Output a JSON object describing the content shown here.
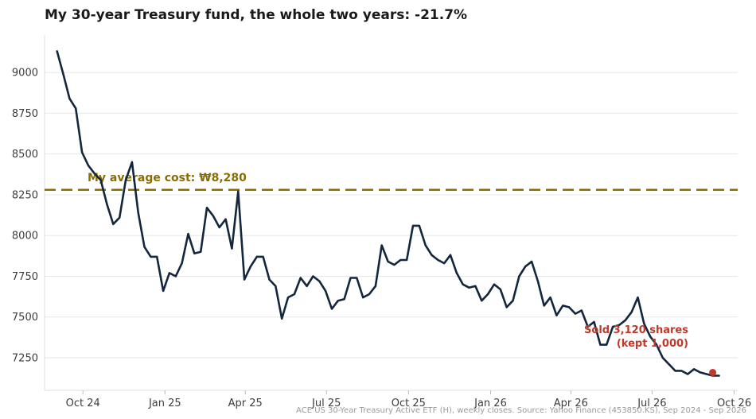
{
  "chart_data": {
    "type": "line",
    "title": "My 30-year Treasury fund, the whole two years: -21.7%",
    "xlabel": "",
    "ylabel": "",
    "xlim": [
      "2024-08-19",
      "2026-10-05"
    ],
    "ylim": [
      7050,
      9230
    ],
    "grid": "horizontal",
    "y_ticks": [
      7250,
      7500,
      7750,
      8000,
      8250,
      8500,
      8750,
      9000
    ],
    "x_ticks": [
      {
        "date": "2024-10-01",
        "label": "Oct 24"
      },
      {
        "date": "2025-01-01",
        "label": "Jan 25"
      },
      {
        "date": "2025-04-01",
        "label": "Apr 25"
      },
      {
        "date": "2025-07-01",
        "label": "Jul 25"
      },
      {
        "date": "2025-10-01",
        "label": "Oct 25"
      },
      {
        "date": "2026-01-01",
        "label": "Jan 26"
      },
      {
        "date": "2026-04-01",
        "label": "Apr 26"
      },
      {
        "date": "2026-07-01",
        "label": "Jul 26"
      },
      {
        "date": "2026-10-01",
        "label": "Oct 26"
      }
    ],
    "series": [
      {
        "color": "#14263d",
        "x": [
          "2024-09-02",
          "2024-09-09",
          "2024-09-16",
          "2024-09-23",
          "2024-09-30",
          "2024-10-07",
          "2024-10-14",
          "2024-10-21",
          "2024-10-28",
          "2024-11-04",
          "2024-11-11",
          "2024-11-18",
          "2024-11-25",
          "2024-12-02",
          "2024-12-09",
          "2024-12-16",
          "2024-12-23",
          "2024-12-30",
          "2025-01-06",
          "2025-01-13",
          "2025-01-20",
          "2025-01-27",
          "2025-02-03",
          "2025-02-10",
          "2025-02-17",
          "2025-02-24",
          "2025-03-03",
          "2025-03-10",
          "2025-03-17",
          "2025-03-24",
          "2025-03-31",
          "2025-04-07",
          "2025-04-14",
          "2025-04-21",
          "2025-04-28",
          "2025-05-05",
          "2025-05-12",
          "2025-05-19",
          "2025-05-26",
          "2025-06-02",
          "2025-06-09",
          "2025-06-16",
          "2025-06-23",
          "2025-06-30",
          "2025-07-07",
          "2025-07-14",
          "2025-07-21",
          "2025-07-28",
          "2025-08-04",
          "2025-08-11",
          "2025-08-18",
          "2025-08-25",
          "2025-09-01",
          "2025-09-08",
          "2025-09-15",
          "2025-09-22",
          "2025-09-29",
          "2025-10-06",
          "2025-10-13",
          "2025-10-20",
          "2025-10-27",
          "2025-11-03",
          "2025-11-10",
          "2025-11-17",
          "2025-11-24",
          "2025-12-01",
          "2025-12-08",
          "2025-12-15",
          "2025-12-22",
          "2025-12-29",
          "2026-01-05",
          "2026-01-12",
          "2026-01-19",
          "2026-01-26",
          "2026-02-02",
          "2026-02-09",
          "2026-02-16",
          "2026-02-23",
          "2026-03-02",
          "2026-03-09",
          "2026-03-16",
          "2026-03-23",
          "2026-03-30",
          "2026-04-06",
          "2026-04-13",
          "2026-04-20",
          "2026-04-27",
          "2026-05-04",
          "2026-05-11",
          "2026-05-18",
          "2026-05-25",
          "2026-06-01",
          "2026-06-08",
          "2026-06-15",
          "2026-06-22",
          "2026-06-29",
          "2026-07-06",
          "2026-07-13",
          "2026-07-20",
          "2026-07-27",
          "2026-08-03",
          "2026-08-10",
          "2026-08-17",
          "2026-08-24",
          "2026-08-31",
          "2026-09-07",
          "2026-09-14"
        ],
        "values": [
          9130,
          8990,
          8840,
          8780,
          8510,
          8430,
          8380,
          8340,
          8190,
          8070,
          8110,
          8340,
          8450,
          8140,
          7930,
          7870,
          7870,
          7660,
          7770,
          7750,
          7830,
          8010,
          7890,
          7900,
          8170,
          8120,
          8050,
          8100,
          7920,
          8270,
          7730,
          7810,
          7870,
          7870,
          7730,
          7690,
          7490,
          7620,
          7640,
          7740,
          7690,
          7750,
          7720,
          7660,
          7550,
          7600,
          7610,
          7740,
          7740,
          7620,
          7640,
          7690,
          7940,
          7840,
          7820,
          7850,
          7850,
          8060,
          8060,
          7940,
          7880,
          7850,
          7830,
          7880,
          7770,
          7700,
          7680,
          7690,
          7600,
          7640,
          7700,
          7670,
          7560,
          7600,
          7750,
          7810,
          7840,
          7720,
          7570,
          7620,
          7510,
          7570,
          7560,
          7520,
          7540,
          7440,
          7470,
          7330,
          7330,
          7440,
          7450,
          7480,
          7530,
          7620,
          7460,
          7380,
          7330,
          7250,
          7210,
          7170,
          7170,
          7150,
          7180,
          7160,
          7150,
          7140,
          7140
        ]
      }
    ],
    "reference_line": {
      "value": 8280,
      "label": "My average cost: ₩8,280",
      "color": "#8a6d00"
    },
    "annotation": {
      "x": "2026-09-07",
      "y": 7160,
      "line1": "Sold 3,120 shares",
      "line2": "(kept 1,000)",
      "color": "#c0392b"
    }
  },
  "source": "ACE US 30-Year Treasury Active ETF (H), weekly closes. Source: Yahoo Finance (453850.KS), Sep 2024 - Sep 2026"
}
